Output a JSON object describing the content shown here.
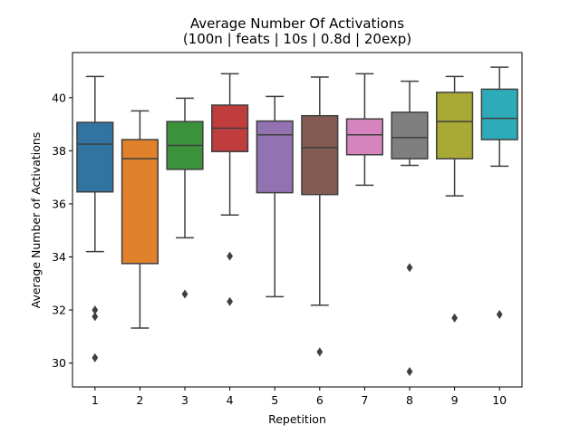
{
  "chart_data": {
    "type": "box",
    "title": "Average Number Of Activations",
    "subtitle": "(100n | feats | 10s | 0.8d | 20exp)",
    "xlabel": "Repetition",
    "ylabel": "Average Number of Activations",
    "ylim": [
      29.1,
      41.7
    ],
    "yticks": [
      30,
      32,
      34,
      36,
      38,
      40
    ],
    "grid": false,
    "categories": [
      "1",
      "2",
      "3",
      "4",
      "5",
      "6",
      "7",
      "8",
      "9",
      "10"
    ],
    "colors": [
      "#3274a1",
      "#e1812c",
      "#3a923a",
      "#c03d3e",
      "#9372b2",
      "#845b53",
      "#d684bd",
      "#7f7f7f",
      "#a9aa35",
      "#2eabb8"
    ],
    "boxes": [
      {
        "q1": 36.45,
        "median": 38.25,
        "q3": 39.07,
        "whisker_low": 34.2,
        "whisker_high": 40.8,
        "outliers": [
          32.0,
          31.75,
          30.2
        ]
      },
      {
        "q1": 33.75,
        "median": 37.7,
        "q3": 38.42,
        "whisker_low": 31.32,
        "whisker_high": 39.5,
        "outliers": []
      },
      {
        "q1": 37.3,
        "median": 38.2,
        "q3": 39.1,
        "whisker_low": 34.72,
        "whisker_high": 39.98,
        "outliers": [
          32.6
        ]
      },
      {
        "q1": 37.97,
        "median": 38.85,
        "q3": 39.72,
        "whisker_low": 35.58,
        "whisker_high": 40.9,
        "outliers": [
          34.03,
          32.32
        ]
      },
      {
        "q1": 36.42,
        "median": 38.6,
        "q3": 39.12,
        "whisker_low": 32.5,
        "whisker_high": 40.05,
        "outliers": []
      },
      {
        "q1": 36.35,
        "median": 38.12,
        "q3": 39.32,
        "whisker_low": 32.18,
        "whisker_high": 40.78,
        "outliers": [
          30.42
        ]
      },
      {
        "q1": 37.85,
        "median": 38.6,
        "q3": 39.2,
        "whisker_low": 36.7,
        "whisker_high": 40.9,
        "outliers": []
      },
      {
        "q1": 37.7,
        "median": 38.5,
        "q3": 39.45,
        "whisker_low": 37.45,
        "whisker_high": 40.62,
        "outliers": [
          33.6,
          29.68
        ]
      },
      {
        "q1": 37.7,
        "median": 39.1,
        "q3": 40.2,
        "whisker_low": 36.3,
        "whisker_high": 40.8,
        "outliers": [
          31.7
        ]
      },
      {
        "q1": 38.42,
        "median": 39.22,
        "q3": 40.32,
        "whisker_low": 37.42,
        "whisker_high": 41.15,
        "outliers": [
          31.83
        ]
      }
    ]
  }
}
